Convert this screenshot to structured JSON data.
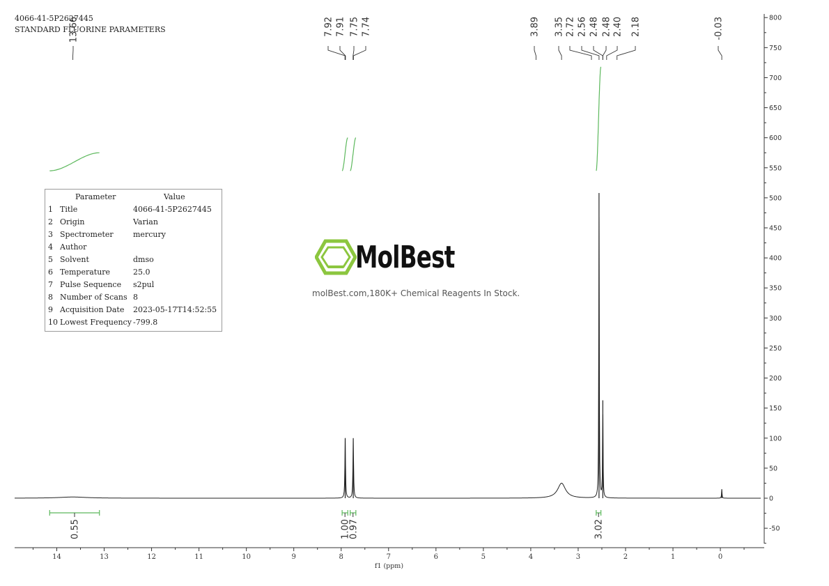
{
  "header": {
    "line1": "4066-41-5P2627445",
    "line2": "STANDARD FLUORINE PARAMETERS"
  },
  "param_table": {
    "col_param": "Parameter",
    "col_value": "Value",
    "rows": [
      {
        "idx": "1",
        "name": "Title",
        "value": "4066-41-5P2627445"
      },
      {
        "idx": "2",
        "name": "Origin",
        "value": "Varian"
      },
      {
        "idx": "3",
        "name": "Spectrometer",
        "value": "mercury"
      },
      {
        "idx": "4",
        "name": "Author",
        "value": ""
      },
      {
        "idx": "5",
        "name": "Solvent",
        "value": "dmso"
      },
      {
        "idx": "6",
        "name": "Temperature",
        "value": "25.0"
      },
      {
        "idx": "7",
        "name": "Pulse Sequence",
        "value": "s2pul"
      },
      {
        "idx": "8",
        "name": "Number of Scans",
        "value": "8"
      },
      {
        "idx": "9",
        "name": "Acquisition Date",
        "value": "2023-05-17T14:52:55"
      },
      {
        "idx": "10",
        "name": "Lowest Frequency",
        "value": "-799.8"
      }
    ]
  },
  "watermark": {
    "brand": "MolBest",
    "slogan": "molBest.com,180K+ Chemical Reagents In Stock."
  },
  "colors": {
    "spectrum": "#222222",
    "integral": "#5cb85c",
    "peak_label": "#333333",
    "logo_green": "#8cc63f"
  },
  "chart_data": {
    "type": "line",
    "xlabel": "f1 (ppm)",
    "xlim": [
      15.0,
      -0.9
    ],
    "x_ticks": [
      "14",
      "13",
      "12",
      "11",
      "10",
      "9",
      "8",
      "7",
      "6",
      "5",
      "4",
      "3",
      "2",
      "1",
      "0"
    ],
    "ylim": [
      -80,
      810
    ],
    "y_ticks": [
      "800",
      "750",
      "700",
      "650",
      "600",
      "550",
      "500",
      "450",
      "400",
      "350",
      "300",
      "250",
      "200",
      "150",
      "100",
      "50",
      "0",
      "-50"
    ],
    "peak_labels": [
      "13.66",
      "7.92",
      "7.91",
      "7.75",
      "7.74",
      "3.89",
      "3.35",
      "2.72",
      "2.56",
      "2.48",
      "2.48",
      "2.40",
      "2.18",
      "-0.03"
    ],
    "peaks": [
      {
        "ppm": 13.66,
        "height": 2,
        "width": 0.35
      },
      {
        "ppm": 7.915,
        "height": 100,
        "width": 0.008
      },
      {
        "ppm": 7.745,
        "height": 100,
        "width": 0.008
      },
      {
        "ppm": 3.35,
        "height": 25,
        "width": 0.1
      },
      {
        "ppm": 2.56,
        "height": 508,
        "width": 0.006
      },
      {
        "ppm": 2.48,
        "height": 163,
        "width": 0.006
      },
      {
        "ppm": -0.03,
        "height": 15,
        "width": 0.006
      }
    ],
    "integrals": [
      {
        "from": 14.15,
        "to": 13.1,
        "value": "0.55",
        "y_start": 545,
        "y_end": 575
      },
      {
        "from": 7.98,
        "to": 7.86,
        "value": "1.00",
        "y_start": 545,
        "y_end": 600
      },
      {
        "from": 7.81,
        "to": 7.69,
        "value": "0.97",
        "y_start": 545,
        "y_end": 600
      },
      {
        "from": 2.62,
        "to": 2.52,
        "value": "3.02",
        "y_start": 545,
        "y_end": 718
      }
    ]
  }
}
